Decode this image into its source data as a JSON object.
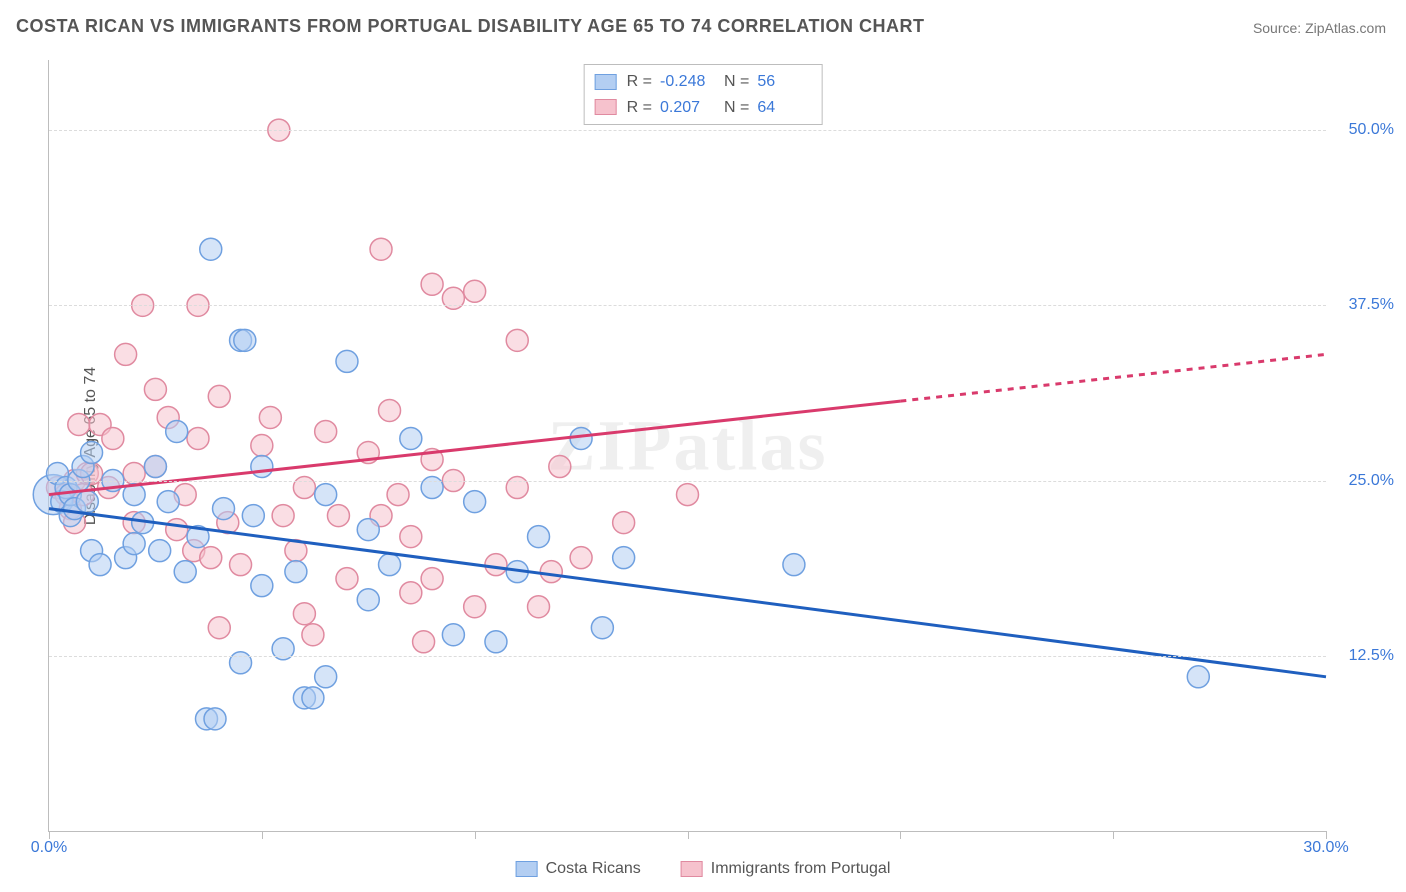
{
  "title": "COSTA RICAN VS IMMIGRANTS FROM PORTUGAL DISABILITY AGE 65 TO 74 CORRELATION CHART",
  "source": "Source: ZipAtlas.com",
  "watermark": "ZIPatlas",
  "chart": {
    "type": "scatter",
    "ylabel": "Disability Age 65 to 74",
    "xlim": [
      0,
      30
    ],
    "ylim": [
      0,
      55
    ],
    "xtick_values": [
      0,
      5,
      10,
      15,
      20,
      25,
      30
    ],
    "xtick_labels": {
      "0": "0.0%",
      "30": "30.0%"
    },
    "ytick_values": [
      12.5,
      25.0,
      37.5,
      50.0
    ],
    "ytick_labels": [
      "12.5%",
      "25.0%",
      "37.5%",
      "50.0%"
    ],
    "background_color": "#ffffff",
    "grid_color": "#dcdcdc",
    "axis_color": "#bdbdbd",
    "label_color": "#555555",
    "tick_label_color": "#3b78d8",
    "title_fontsize": 18,
    "label_fontsize": 16,
    "tick_fontsize": 16
  },
  "series": {
    "costa_ricans": {
      "label": "Costa Ricans",
      "R": "-0.248",
      "N": "56",
      "fill": "#b3cef2",
      "stroke": "#6fa0e0",
      "fill_opacity": 0.55,
      "trend_color": "#1f5fbf",
      "trend_width": 3,
      "trend": {
        "x1": 0,
        "y1": 23.0,
        "x2": 30,
        "y2": 11.0
      },
      "marker_radius": 11,
      "points": [
        {
          "x": 0.1,
          "y": 24.0,
          "r": 20
        },
        {
          "x": 0.2,
          "y": 25.5
        },
        {
          "x": 0.3,
          "y": 23.5
        },
        {
          "x": 0.4,
          "y": 24.5
        },
        {
          "x": 0.5,
          "y": 22.5
        },
        {
          "x": 0.5,
          "y": 24.0
        },
        {
          "x": 0.6,
          "y": 23.0
        },
        {
          "x": 0.7,
          "y": 25.0
        },
        {
          "x": 0.8,
          "y": 26.0
        },
        {
          "x": 0.9,
          "y": 23.5
        },
        {
          "x": 1.0,
          "y": 20.0
        },
        {
          "x": 1.0,
          "y": 27.0
        },
        {
          "x": 1.2,
          "y": 19.0
        },
        {
          "x": 1.5,
          "y": 25.0
        },
        {
          "x": 1.8,
          "y": 19.5
        },
        {
          "x": 2.0,
          "y": 20.5
        },
        {
          "x": 2.0,
          "y": 24.0
        },
        {
          "x": 2.2,
          "y": 22.0
        },
        {
          "x": 2.5,
          "y": 26.0
        },
        {
          "x": 2.6,
          "y": 20.0
        },
        {
          "x": 2.8,
          "y": 23.5
        },
        {
          "x": 3.0,
          "y": 28.5
        },
        {
          "x": 3.2,
          "y": 18.5
        },
        {
          "x": 3.5,
          "y": 21.0
        },
        {
          "x": 3.7,
          "y": 8.0
        },
        {
          "x": 3.8,
          "y": 41.5
        },
        {
          "x": 3.9,
          "y": 8.0
        },
        {
          "x": 4.1,
          "y": 23.0
        },
        {
          "x": 4.5,
          "y": 35.0
        },
        {
          "x": 4.5,
          "y": 12.0
        },
        {
          "x": 4.6,
          "y": 35.0
        },
        {
          "x": 4.8,
          "y": 22.5
        },
        {
          "x": 5.0,
          "y": 26.0
        },
        {
          "x": 5.0,
          "y": 17.5
        },
        {
          "x": 5.5,
          "y": 13.0
        },
        {
          "x": 5.8,
          "y": 18.5
        },
        {
          "x": 6.0,
          "y": 9.5
        },
        {
          "x": 6.2,
          "y": 9.5
        },
        {
          "x": 6.5,
          "y": 24.0
        },
        {
          "x": 6.5,
          "y": 11.0
        },
        {
          "x": 7.0,
          "y": 33.5
        },
        {
          "x": 7.5,
          "y": 21.5
        },
        {
          "x": 7.5,
          "y": 16.5
        },
        {
          "x": 8.0,
          "y": 19.0
        },
        {
          "x": 8.5,
          "y": 28.0
        },
        {
          "x": 9.0,
          "y": 24.5
        },
        {
          "x": 9.5,
          "y": 14.0
        },
        {
          "x": 10.0,
          "y": 23.5
        },
        {
          "x": 10.5,
          "y": 13.5
        },
        {
          "x": 11.0,
          "y": 18.5
        },
        {
          "x": 11.5,
          "y": 21.0
        },
        {
          "x": 12.5,
          "y": 28.0
        },
        {
          "x": 13.0,
          "y": 14.5
        },
        {
          "x": 13.5,
          "y": 19.5
        },
        {
          "x": 17.5,
          "y": 19.0
        },
        {
          "x": 27.0,
          "y": 11.0
        }
      ]
    },
    "portugal": {
      "label": "Immigrants from Portugal",
      "R": "0.207",
      "N": "64",
      "fill": "#f6c2cd",
      "stroke": "#e08aa0",
      "fill_opacity": 0.55,
      "trend_color": "#d93a6c",
      "trend_width": 3,
      "trend": {
        "x1": 0,
        "y1": 24.0,
        "x2": 30,
        "y2": 34.0
      },
      "trend_dash_cutoff_x": 20,
      "marker_radius": 11,
      "points": [
        {
          "x": 0.2,
          "y": 24.5
        },
        {
          "x": 0.4,
          "y": 24.0
        },
        {
          "x": 0.5,
          "y": 23.0
        },
        {
          "x": 0.6,
          "y": 25.0
        },
        {
          "x": 0.6,
          "y": 22.0
        },
        {
          "x": 0.7,
          "y": 29.0
        },
        {
          "x": 0.8,
          "y": 24.0
        },
        {
          "x": 0.9,
          "y": 25.5
        },
        {
          "x": 1.0,
          "y": 25.5
        },
        {
          "x": 1.2,
          "y": 29.0
        },
        {
          "x": 1.4,
          "y": 24.5
        },
        {
          "x": 1.5,
          "y": 28.0
        },
        {
          "x": 1.8,
          "y": 34.0
        },
        {
          "x": 2.0,
          "y": 22.0
        },
        {
          "x": 2.0,
          "y": 25.5
        },
        {
          "x": 2.2,
          "y": 37.5
        },
        {
          "x": 2.5,
          "y": 26.0
        },
        {
          "x": 2.5,
          "y": 31.5
        },
        {
          "x": 2.8,
          "y": 29.5
        },
        {
          "x": 3.0,
          "y": 21.5
        },
        {
          "x": 3.2,
          "y": 24.0
        },
        {
          "x": 3.4,
          "y": 20.0
        },
        {
          "x": 3.5,
          "y": 37.5
        },
        {
          "x": 3.5,
          "y": 28.0
        },
        {
          "x": 3.8,
          "y": 19.5
        },
        {
          "x": 4.0,
          "y": 31.0
        },
        {
          "x": 4.0,
          "y": 14.5
        },
        {
          "x": 4.2,
          "y": 22.0
        },
        {
          "x": 4.5,
          "y": 19.0
        },
        {
          "x": 5.0,
          "y": 27.5
        },
        {
          "x": 5.2,
          "y": 29.5
        },
        {
          "x": 5.4,
          "y": 50.0
        },
        {
          "x": 5.5,
          "y": 22.5
        },
        {
          "x": 5.8,
          "y": 20.0
        },
        {
          "x": 6.0,
          "y": 24.5
        },
        {
          "x": 6.0,
          "y": 15.5
        },
        {
          "x": 6.2,
          "y": 14.0
        },
        {
          "x": 6.5,
          "y": 28.5
        },
        {
          "x": 6.8,
          "y": 22.5
        },
        {
          "x": 7.0,
          "y": 18.0
        },
        {
          "x": 7.5,
          "y": 27.0
        },
        {
          "x": 7.8,
          "y": 41.5
        },
        {
          "x": 7.8,
          "y": 22.5
        },
        {
          "x": 8.0,
          "y": 30.0
        },
        {
          "x": 8.2,
          "y": 24.0
        },
        {
          "x": 8.5,
          "y": 21.0
        },
        {
          "x": 8.5,
          "y": 17.0
        },
        {
          "x": 8.8,
          "y": 13.5
        },
        {
          "x": 9.0,
          "y": 26.5
        },
        {
          "x": 9.0,
          "y": 39.0
        },
        {
          "x": 9.0,
          "y": 18.0
        },
        {
          "x": 9.5,
          "y": 38.0
        },
        {
          "x": 9.5,
          "y": 25.0
        },
        {
          "x": 10.0,
          "y": 38.5
        },
        {
          "x": 10.0,
          "y": 16.0
        },
        {
          "x": 10.5,
          "y": 19.0
        },
        {
          "x": 11.0,
          "y": 35.0
        },
        {
          "x": 11.0,
          "y": 24.5
        },
        {
          "x": 11.5,
          "y": 16.0
        },
        {
          "x": 12.0,
          "y": 26.0
        },
        {
          "x": 12.5,
          "y": 19.5
        },
        {
          "x": 13.5,
          "y": 22.0
        },
        {
          "x": 15.0,
          "y": 24.0
        },
        {
          "x": 11.8,
          "y": 18.5
        }
      ]
    }
  },
  "legend_top": {
    "R_label": "R =",
    "N_label": "N ="
  }
}
